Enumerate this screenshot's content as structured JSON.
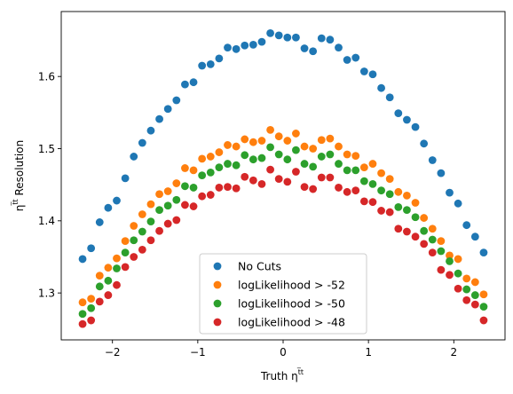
{
  "chart_data": {
    "type": "scatter",
    "title": "",
    "xlabel": "Truth η",
    "xlabel_sup": "t̅t",
    "ylabel": "η",
    "ylabel_sup": "t̅t",
    "ylabel_suffix": " Resolution",
    "xlim": [
      -2.6,
      2.6
    ],
    "ylim": [
      1.235,
      1.69
    ],
    "xticks": [
      -2,
      -1,
      0,
      1,
      2
    ],
    "xtick_labels": [
      "−2",
      "−1",
      "0",
      "1",
      "2"
    ],
    "yticks": [
      1.3,
      1.4,
      1.5,
      1.6
    ],
    "ytick_labels": [
      "1.3",
      "1.4",
      "1.5",
      "1.6"
    ],
    "grid": false,
    "legend_position": "bottom-center",
    "x": [
      -2.35,
      -2.25,
      -2.15,
      -2.05,
      -1.95,
      -1.85,
      -1.75,
      -1.65,
      -1.55,
      -1.45,
      -1.35,
      -1.25,
      -1.15,
      -1.05,
      -0.95,
      -0.85,
      -0.75,
      -0.65,
      -0.55,
      -0.45,
      -0.35,
      -0.25,
      -0.15,
      -0.05,
      0.05,
      0.15,
      0.25,
      0.35,
      0.45,
      0.55,
      0.65,
      0.75,
      0.85,
      0.95,
      1.05,
      1.15,
      1.25,
      1.35,
      1.45,
      1.55,
      1.65,
      1.75,
      1.85,
      1.95,
      2.05,
      2.15,
      2.25,
      2.35
    ],
    "series": [
      {
        "name": "No Cuts",
        "color": "#1f77b4",
        "values": [
          1.347,
          1.362,
          1.398,
          1.418,
          1.428,
          1.459,
          1.489,
          1.508,
          1.525,
          1.541,
          1.555,
          1.567,
          1.589,
          1.592,
          1.615,
          1.617,
          1.625,
          1.64,
          1.638,
          1.643,
          1.644,
          1.648,
          1.66,
          1.657,
          1.654,
          1.654,
          1.639,
          1.635,
          1.653,
          1.651,
          1.64,
          1.623,
          1.626,
          1.607,
          1.603,
          1.584,
          1.571,
          1.549,
          1.54,
          1.53,
          1.507,
          1.484,
          1.466,
          1.439,
          1.424,
          1.394,
          1.378,
          1.356
        ]
      },
      {
        "name": "logLikelihood > -52",
        "color": "#ff7f0e",
        "values": [
          1.287,
          1.292,
          1.324,
          1.335,
          1.348,
          1.372,
          1.393,
          1.409,
          1.423,
          1.437,
          1.441,
          1.452,
          1.473,
          1.47,
          1.486,
          1.489,
          1.495,
          1.505,
          1.503,
          1.513,
          1.509,
          1.511,
          1.526,
          1.517,
          1.511,
          1.521,
          1.503,
          1.5,
          1.512,
          1.514,
          1.503,
          1.492,
          1.49,
          1.474,
          1.479,
          1.466,
          1.458,
          1.44,
          1.435,
          1.425,
          1.404,
          1.389,
          1.372,
          1.352,
          1.347,
          1.32,
          1.315,
          1.298
        ]
      },
      {
        "name": "logLikelihood > -50",
        "color": "#2ca02c",
        "values": [
          1.271,
          1.279,
          1.309,
          1.317,
          1.334,
          1.356,
          1.373,
          1.385,
          1.399,
          1.415,
          1.421,
          1.429,
          1.448,
          1.446,
          1.463,
          1.467,
          1.474,
          1.479,
          1.477,
          1.491,
          1.485,
          1.487,
          1.502,
          1.492,
          1.485,
          1.498,
          1.479,
          1.475,
          1.489,
          1.492,
          1.479,
          1.47,
          1.47,
          1.455,
          1.451,
          1.442,
          1.437,
          1.419,
          1.415,
          1.405,
          1.386,
          1.374,
          1.358,
          1.344,
          1.327,
          1.305,
          1.297,
          1.281
        ]
      },
      {
        "name": "logLikelihood > -48",
        "color": "#d62728",
        "values": [
          1.257,
          1.262,
          1.288,
          1.297,
          1.311,
          1.336,
          1.35,
          1.36,
          1.373,
          1.386,
          1.396,
          1.401,
          1.422,
          1.42,
          1.434,
          1.436,
          1.446,
          1.447,
          1.445,
          1.461,
          1.456,
          1.451,
          1.471,
          1.458,
          1.454,
          1.468,
          1.447,
          1.444,
          1.46,
          1.46,
          1.446,
          1.44,
          1.442,
          1.427,
          1.426,
          1.414,
          1.412,
          1.389,
          1.385,
          1.378,
          1.368,
          1.356,
          1.332,
          1.325,
          1.306,
          1.29,
          1.284,
          1.262
        ]
      }
    ]
  }
}
